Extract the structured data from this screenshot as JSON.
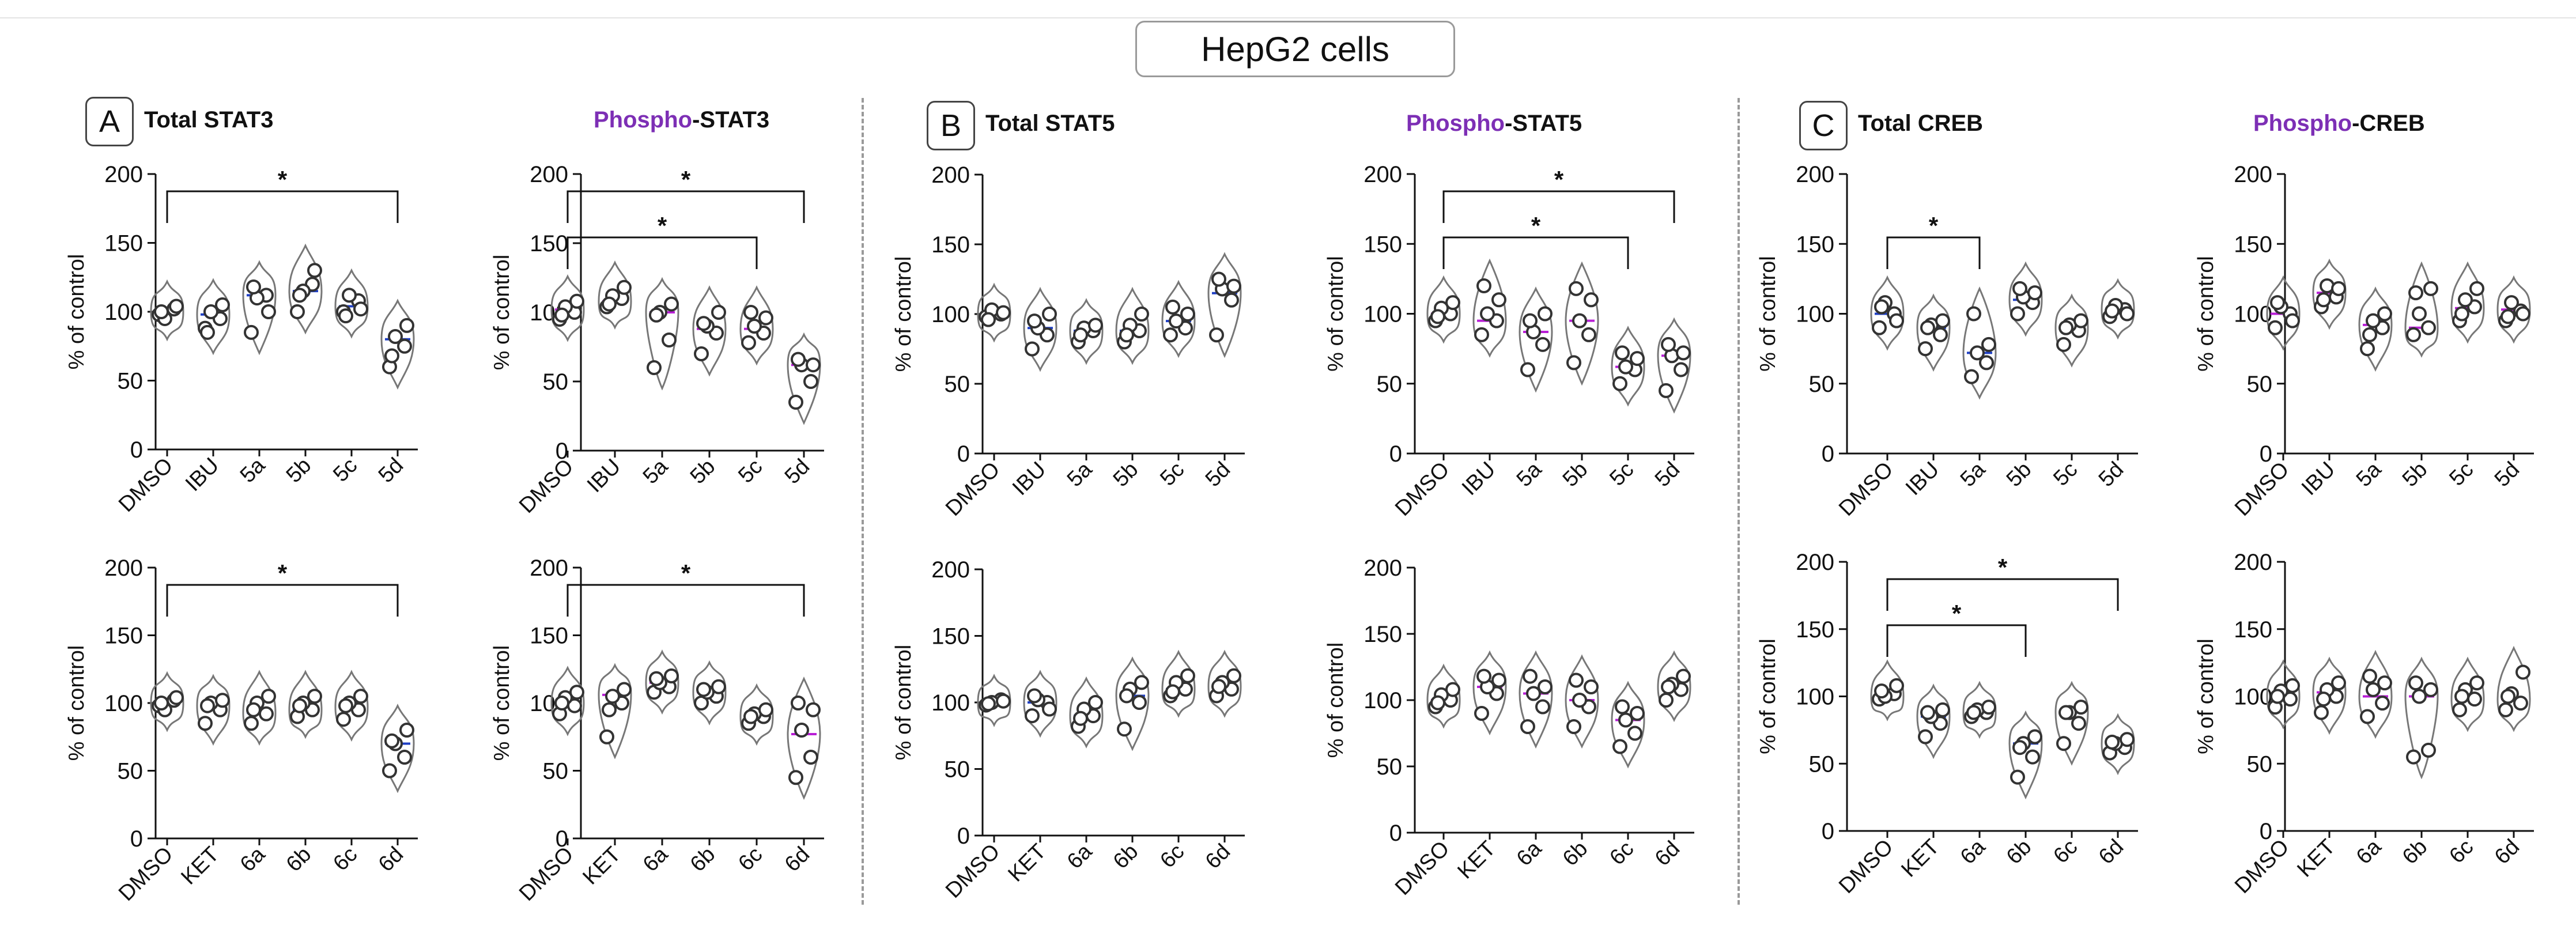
{
  "figure_title": "HepG2 cells",
  "colors": {
    "phospho": "#7d2fb5",
    "median_blue": "#1f3fc4",
    "median_purple": "#b81ed6",
    "axis": "#111111",
    "violin": "#777777"
  },
  "panels": [
    {
      "letter": "A",
      "total_title": "Total STAT3",
      "phospho_prefix": "Phospho",
      "phospho_suffix": "-STAT3"
    },
    {
      "letter": "B",
      "total_title": "Total STAT5",
      "phospho_prefix": "Phospho",
      "phospho_suffix": "-STAT5"
    },
    {
      "letter": "C",
      "total_title": "Total CREB",
      "phospho_prefix": "Phospho",
      "phospho_suffix": "-CREB"
    }
  ],
  "chart_data": [
    {
      "id": "A-total-5",
      "type": "violin",
      "title": "Total STAT3",
      "ylabel": "% of control",
      "ylim": [
        0,
        200
      ],
      "yticks": [
        0,
        50,
        100,
        150,
        200
      ],
      "categories": [
        "DMSO",
        "IBU",
        "5a",
        "5b",
        "5c",
        "5d"
      ],
      "medians": [
        100,
        98,
        112,
        115,
        104,
        80
      ],
      "points": [
        [
          98,
          102,
          95,
          104,
          100
        ],
        [
          88,
          95,
          100,
          105,
          85
        ],
        [
          85,
          112,
          110,
          100,
          118
        ],
        [
          100,
          120,
          115,
          130,
          112
        ],
        [
          100,
          108,
          112,
          102,
          97
        ],
        [
          60,
          75,
          82,
          90,
          68
        ]
      ],
      "brackets": [
        {
          "from": 0,
          "to": 5,
          "level": 1,
          "label": "*"
        }
      ]
    },
    {
      "id": "A-phospho-5",
      "type": "violin",
      "title": "Phospho-STAT3",
      "ylabel": "% of control",
      "ylim": [
        0,
        200
      ],
      "yticks": [
        0,
        50,
        100,
        150,
        200
      ],
      "categories": [
        "DMSO",
        "IBU",
        "5a",
        "5b",
        "5c",
        "5d"
      ],
      "medians": [
        102,
        108,
        100,
        88,
        88,
        62
      ],
      "points": [
        [
          95,
          100,
          104,
          108,
          98
        ],
        [
          104,
          110,
          112,
          118,
          106
        ],
        [
          60,
          80,
          100,
          106,
          98
        ],
        [
          70,
          85,
          90,
          100,
          92
        ],
        [
          78,
          85,
          90,
          96,
          100
        ],
        [
          35,
          50,
          62,
          62,
          66
        ]
      ],
      "brackets": [
        {
          "from": 0,
          "to": 4,
          "level": 0,
          "label": "*"
        },
        {
          "from": 0,
          "to": 5,
          "level": 1,
          "label": "*"
        }
      ]
    },
    {
      "id": "B-total-5",
      "type": "violin",
      "title": "Total STAT5",
      "ylabel": "% of control",
      "ylim": [
        0,
        200
      ],
      "yticks": [
        0,
        50,
        100,
        150,
        200
      ],
      "categories": [
        "DMSO",
        "IBU",
        "5a",
        "5b",
        "5c",
        "5d"
      ],
      "medians": [
        100,
        90,
        88,
        88,
        95,
        115
      ],
      "points": [
        [
          98,
          100,
          103,
          101,
          96
        ],
        [
          75,
          85,
          90,
          100,
          95
        ],
        [
          80,
          88,
          90,
          92,
          85
        ],
        [
          80,
          88,
          92,
          100,
          85
        ],
        [
          85,
          90,
          95,
          100,
          105
        ],
        [
          85,
          110,
          118,
          120,
          125
        ]
      ],
      "brackets": []
    },
    {
      "id": "B-phospho-5",
      "type": "violin",
      "title": "Phospho-STAT5",
      "ylabel": "% of control",
      "ylim": [
        0,
        200
      ],
      "yticks": [
        0,
        50,
        100,
        150,
        200
      ],
      "categories": [
        "DMSO",
        "IBU",
        "5a",
        "5b",
        "5c",
        "5d"
      ],
      "medians": [
        100,
        95,
        87,
        95,
        62,
        70
      ],
      "points": [
        [
          95,
          100,
          104,
          108,
          98
        ],
        [
          85,
          95,
          100,
          110,
          120
        ],
        [
          60,
          78,
          87,
          100,
          95
        ],
        [
          65,
          85,
          95,
          110,
          118
        ],
        [
          50,
          60,
          62,
          68,
          72
        ],
        [
          45,
          60,
          70,
          72,
          78
        ]
      ],
      "brackets": [
        {
          "from": 0,
          "to": 4,
          "level": 0,
          "label": "*"
        },
        {
          "from": 0,
          "to": 5,
          "level": 1,
          "label": "*"
        }
      ]
    },
    {
      "id": "C-total-5",
      "type": "violin",
      "title": "Total CREB",
      "ylabel": "% of control",
      "ylim": [
        0,
        200
      ],
      "yticks": [
        0,
        50,
        100,
        150,
        200
      ],
      "categories": [
        "DMSO",
        "IBU",
        "5a",
        "5b",
        "5c",
        "5d"
      ],
      "medians": [
        100,
        90,
        72,
        110,
        90,
        103
      ],
      "points": [
        [
          90,
          100,
          108,
          95,
          105
        ],
        [
          75,
          85,
          92,
          95,
          90
        ],
        [
          55,
          65,
          72,
          78,
          100
        ],
        [
          100,
          108,
          112,
          115,
          118
        ],
        [
          78,
          88,
          92,
          95,
          90
        ],
        [
          98,
          103,
          106,
          100,
          102
        ]
      ],
      "brackets": [
        {
          "from": 0,
          "to": 2,
          "level": 0,
          "label": "*"
        }
      ]
    },
    {
      "id": "C-phospho-5",
      "type": "violin",
      "title": "Phospho-CREB",
      "ylabel": "% of control",
      "ylim": [
        0,
        200
      ],
      "yticks": [
        0,
        50,
        100,
        150,
        200
      ],
      "categories": [
        "DMSO",
        "IBU",
        "5a",
        "5b",
        "5c",
        "5d"
      ],
      "medians": [
        100,
        115,
        92,
        90,
        104,
        103
      ],
      "points": [
        [
          90,
          100,
          105,
          95,
          108
        ],
        [
          105,
          112,
          120,
          118,
          110
        ],
        [
          75,
          90,
          95,
          100,
          85
        ],
        [
          85,
          90,
          100,
          118,
          115
        ],
        [
          95,
          105,
          110,
          118,
          100
        ],
        [
          95,
          102,
          108,
          100,
          98
        ]
      ],
      "brackets": []
    },
    {
      "id": "A-total-6",
      "type": "violin",
      "title": "Total STAT3",
      "ylabel": "% of control",
      "ylim": [
        0,
        200
      ],
      "yticks": [
        0,
        50,
        100,
        150,
        200
      ],
      "categories": [
        "DMSO",
        "KET",
        "6a",
        "6b",
        "6c",
        "6d"
      ],
      "medians": [
        100,
        98,
        93,
        95,
        97,
        70
      ],
      "points": [
        [
          98,
          102,
          95,
          104,
          100
        ],
        [
          85,
          95,
          100,
          102,
          98
        ],
        [
          85,
          92,
          100,
          105,
          95
        ],
        [
          90,
          95,
          100,
          105,
          98
        ],
        [
          88,
          95,
          100,
          105,
          98
        ],
        [
          50,
          60,
          70,
          80,
          72
        ]
      ],
      "brackets": [
        {
          "from": 0,
          "to": 5,
          "level": 1,
          "label": "*"
        }
      ]
    },
    {
      "id": "A-phospho-6",
      "type": "violin",
      "title": "Phospho-STAT3",
      "ylabel": "% of control",
      "ylim": [
        0,
        200
      ],
      "yticks": [
        0,
        50,
        100,
        150,
        200
      ],
      "categories": [
        "DMSO",
        "KET",
        "6a",
        "6b",
        "6c",
        "6d"
      ],
      "medians": [
        100,
        106,
        115,
        108,
        90,
        77
      ],
      "points": [
        [
          92,
          98,
          104,
          108,
          100
        ],
        [
          75,
          100,
          105,
          110,
          95
        ],
        [
          108,
          112,
          115,
          120,
          118
        ],
        [
          100,
          105,
          108,
          112,
          110
        ],
        [
          85,
          90,
          92,
          95,
          90
        ],
        [
          45,
          60,
          80,
          95,
          100
        ]
      ],
      "brackets": [
        {
          "from": 0,
          "to": 5,
          "level": 1,
          "label": "*"
        }
      ]
    },
    {
      "id": "B-total-6",
      "type": "violin",
      "title": "Total STAT5",
      "ylabel": "% of control",
      "ylim": [
        0,
        200
      ],
      "yticks": [
        0,
        50,
        100,
        150,
        200
      ],
      "categories": [
        "DMSO",
        "KET",
        "6a",
        "6b",
        "6c",
        "6d"
      ],
      "medians": [
        100,
        100,
        90,
        105,
        110,
        112
      ],
      "points": [
        [
          98,
          102,
          100,
          101,
          99
        ],
        [
          90,
          100,
          102,
          95,
          105
        ],
        [
          82,
          90,
          95,
          100,
          88
        ],
        [
          80,
          100,
          110,
          115,
          105
        ],
        [
          105,
          110,
          115,
          120,
          108
        ],
        [
          105,
          110,
          115,
          120,
          112
        ]
      ],
      "brackets": []
    },
    {
      "id": "B-phospho-6",
      "type": "violin",
      "title": "Phospho-STAT5",
      "ylabel": "% of control",
      "ylim": [
        0,
        200
      ],
      "yticks": [
        0,
        50,
        100,
        150,
        200
      ],
      "categories": [
        "DMSO",
        "KET",
        "6a",
        "6b",
        "6c",
        "6d"
      ],
      "medians": [
        100,
        110,
        105,
        100,
        85,
        110
      ],
      "points": [
        [
          95,
          100,
          104,
          108,
          98
        ],
        [
          90,
          105,
          110,
          115,
          118
        ],
        [
          80,
          95,
          105,
          110,
          118
        ],
        [
          80,
          95,
          100,
          110,
          115
        ],
        [
          65,
          75,
          85,
          90,
          95
        ],
        [
          100,
          108,
          112,
          118,
          110
        ]
      ],
      "brackets": []
    },
    {
      "id": "C-total-6",
      "type": "violin",
      "title": "Total CREB",
      "ylabel": "% of control",
      "ylim": [
        0,
        200
      ],
      "yticks": [
        0,
        50,
        100,
        150,
        200
      ],
      "categories": [
        "DMSO",
        "KET",
        "6a",
        "6b",
        "6c",
        "6d"
      ],
      "medians": [
        100,
        85,
        88,
        65,
        88,
        65
      ],
      "points": [
        [
          98,
          102,
          100,
          108,
          104
        ],
        [
          70,
          80,
          85,
          90,
          88
        ],
        [
          85,
          88,
          90,
          92,
          88
        ],
        [
          40,
          55,
          65,
          70,
          62
        ],
        [
          65,
          80,
          88,
          92,
          88
        ],
        [
          58,
          62,
          65,
          68,
          66
        ]
      ],
      "brackets": [
        {
          "from": 0,
          "to": 3,
          "level": 0,
          "label": "*"
        },
        {
          "from": 0,
          "to": 5,
          "level": 1,
          "label": "*"
        }
      ]
    },
    {
      "id": "C-phospho-6",
      "type": "violin",
      "title": "Phospho-CREB",
      "ylabel": "% of control",
      "ylim": [
        0,
        200
      ],
      "yticks": [
        0,
        50,
        100,
        150,
        200
      ],
      "categories": [
        "DMSO",
        "KET",
        "6a",
        "6b",
        "6c",
        "6d"
      ],
      "medians": [
        100,
        103,
        100,
        100,
        98,
        98
      ],
      "points": [
        [
          92,
          98,
          104,
          108,
          100
        ],
        [
          88,
          100,
          105,
          110,
          98
        ],
        [
          85,
          95,
          105,
          110,
          115
        ],
        [
          55,
          60,
          100,
          105,
          110
        ],
        [
          90,
          98,
          105,
          110,
          100
        ],
        [
          90,
          95,
          102,
          118,
          100
        ]
      ],
      "brackets": []
    }
  ]
}
